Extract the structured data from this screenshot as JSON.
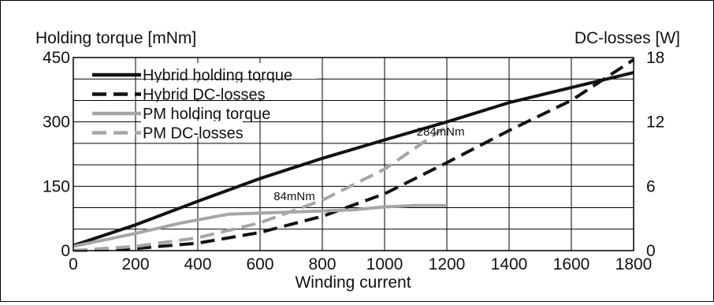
{
  "chart_data": {
    "type": "line",
    "xlabel": "Winding current",
    "ylabel_left": "Holding torque [mNm]",
    "ylabel_right": "DC-losses [W]",
    "xlim": [
      0,
      1800
    ],
    "ylim_left": [
      0,
      450
    ],
    "ylim_right": [
      0,
      18
    ],
    "x_ticks": [
      "0",
      "200",
      "400",
      "600",
      "800",
      "1000",
      "1200",
      "1400",
      "1600",
      "1800"
    ],
    "y_left_ticks": [
      "0",
      "150",
      "300",
      "450"
    ],
    "y_right_ticks": [
      "0",
      "6",
      "12",
      "18"
    ],
    "grid": true,
    "legend_position": "top-left",
    "series": [
      {
        "name": "Hybrid holding torque",
        "axis": "left",
        "color": "#111111",
        "dash": false,
        "points": [
          [
            0,
            12
          ],
          [
            200,
            60
          ],
          [
            400,
            115
          ],
          [
            600,
            168
          ],
          [
            800,
            215
          ],
          [
            1000,
            258
          ],
          [
            1200,
            300
          ],
          [
            1400,
            345
          ],
          [
            1600,
            380
          ],
          [
            1800,
            415
          ]
        ]
      },
      {
        "name": "Hybrid DC-losses",
        "axis": "right",
        "color": "#111111",
        "dash": true,
        "points": [
          [
            0,
            0
          ],
          [
            200,
            0.2
          ],
          [
            400,
            0.7
          ],
          [
            600,
            1.7
          ],
          [
            800,
            3.2
          ],
          [
            1000,
            5.3
          ],
          [
            1200,
            8.2
          ],
          [
            1400,
            11.2
          ],
          [
            1600,
            14.0
          ],
          [
            1800,
            17.8
          ]
        ]
      },
      {
        "name": "PM holding torque",
        "axis": "left",
        "color": "#a6a6a6",
        "dash": false,
        "points": [
          [
            0,
            10
          ],
          [
            200,
            40
          ],
          [
            350,
            65
          ],
          [
            500,
            85
          ],
          [
            700,
            90
          ],
          [
            900,
            95
          ],
          [
            1000,
            102
          ],
          [
            1100,
            105
          ],
          [
            1200,
            105
          ]
        ]
      },
      {
        "name": "PM DC-losses",
        "axis": "right",
        "color": "#a6a6a6",
        "dash": true,
        "points": [
          [
            0,
            0
          ],
          [
            200,
            0.4
          ],
          [
            400,
            1.2
          ],
          [
            600,
            2.6
          ],
          [
            800,
            4.7
          ],
          [
            1000,
            7.6
          ],
          [
            1200,
            11.6
          ]
        ]
      }
    ],
    "annotations": [
      {
        "text": "84mNm",
        "x": 710,
        "y": 118
      },
      {
        "text": "284mNm",
        "x": 1180,
        "y": 268
      }
    ]
  }
}
